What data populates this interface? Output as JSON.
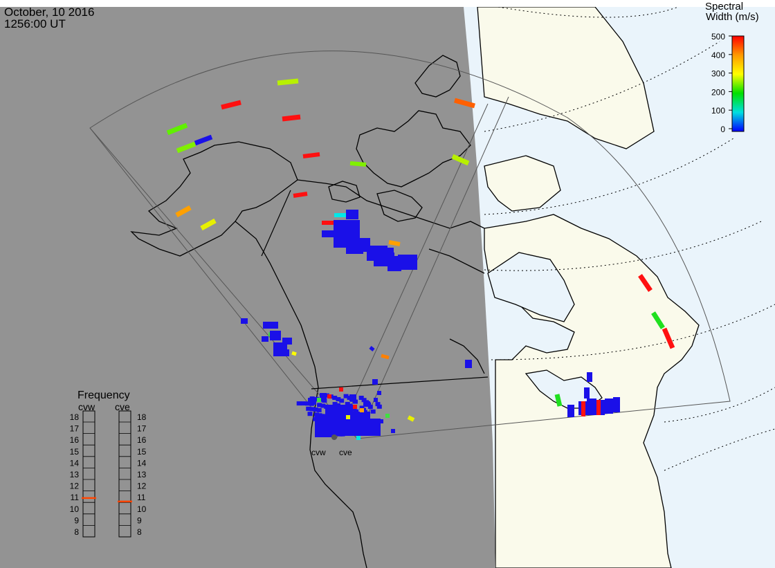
{
  "header": {
    "date": "October, 10 2016",
    "time": "1256:00 UT"
  },
  "colorbar": {
    "title_line1": "Spectral",
    "title_line2": "Width (m/s)",
    "ticks": [
      "500",
      "400",
      "300",
      "200",
      "100",
      "0"
    ],
    "scale_min": 0,
    "scale_max": 500,
    "stops": [
      "#0000ff",
      "#00e0e0",
      "#00e000",
      "#ffff00",
      "#ff9900",
      "#ff0000"
    ]
  },
  "frequency_panel": {
    "title": "Frequency",
    "radars": [
      {
        "name": "cvw",
        "value_mhz": 10.9
      },
      {
        "name": "cve",
        "value_mhz": 10.6
      }
    ],
    "scale": [
      "18",
      "17",
      "16",
      "15",
      "14",
      "13",
      "12",
      "11",
      "10",
      "9",
      "8"
    ],
    "marker_color": "#ff4400"
  },
  "radar_labels": [
    "cvw",
    "cve"
  ],
  "colors": {
    "night": "#939393",
    "land_day": "#fafaeb",
    "ocean_day": "#eaf4fb",
    "coast": "#000000",
    "fov": "#555555",
    "scatter_main": "#1a10e8"
  }
}
